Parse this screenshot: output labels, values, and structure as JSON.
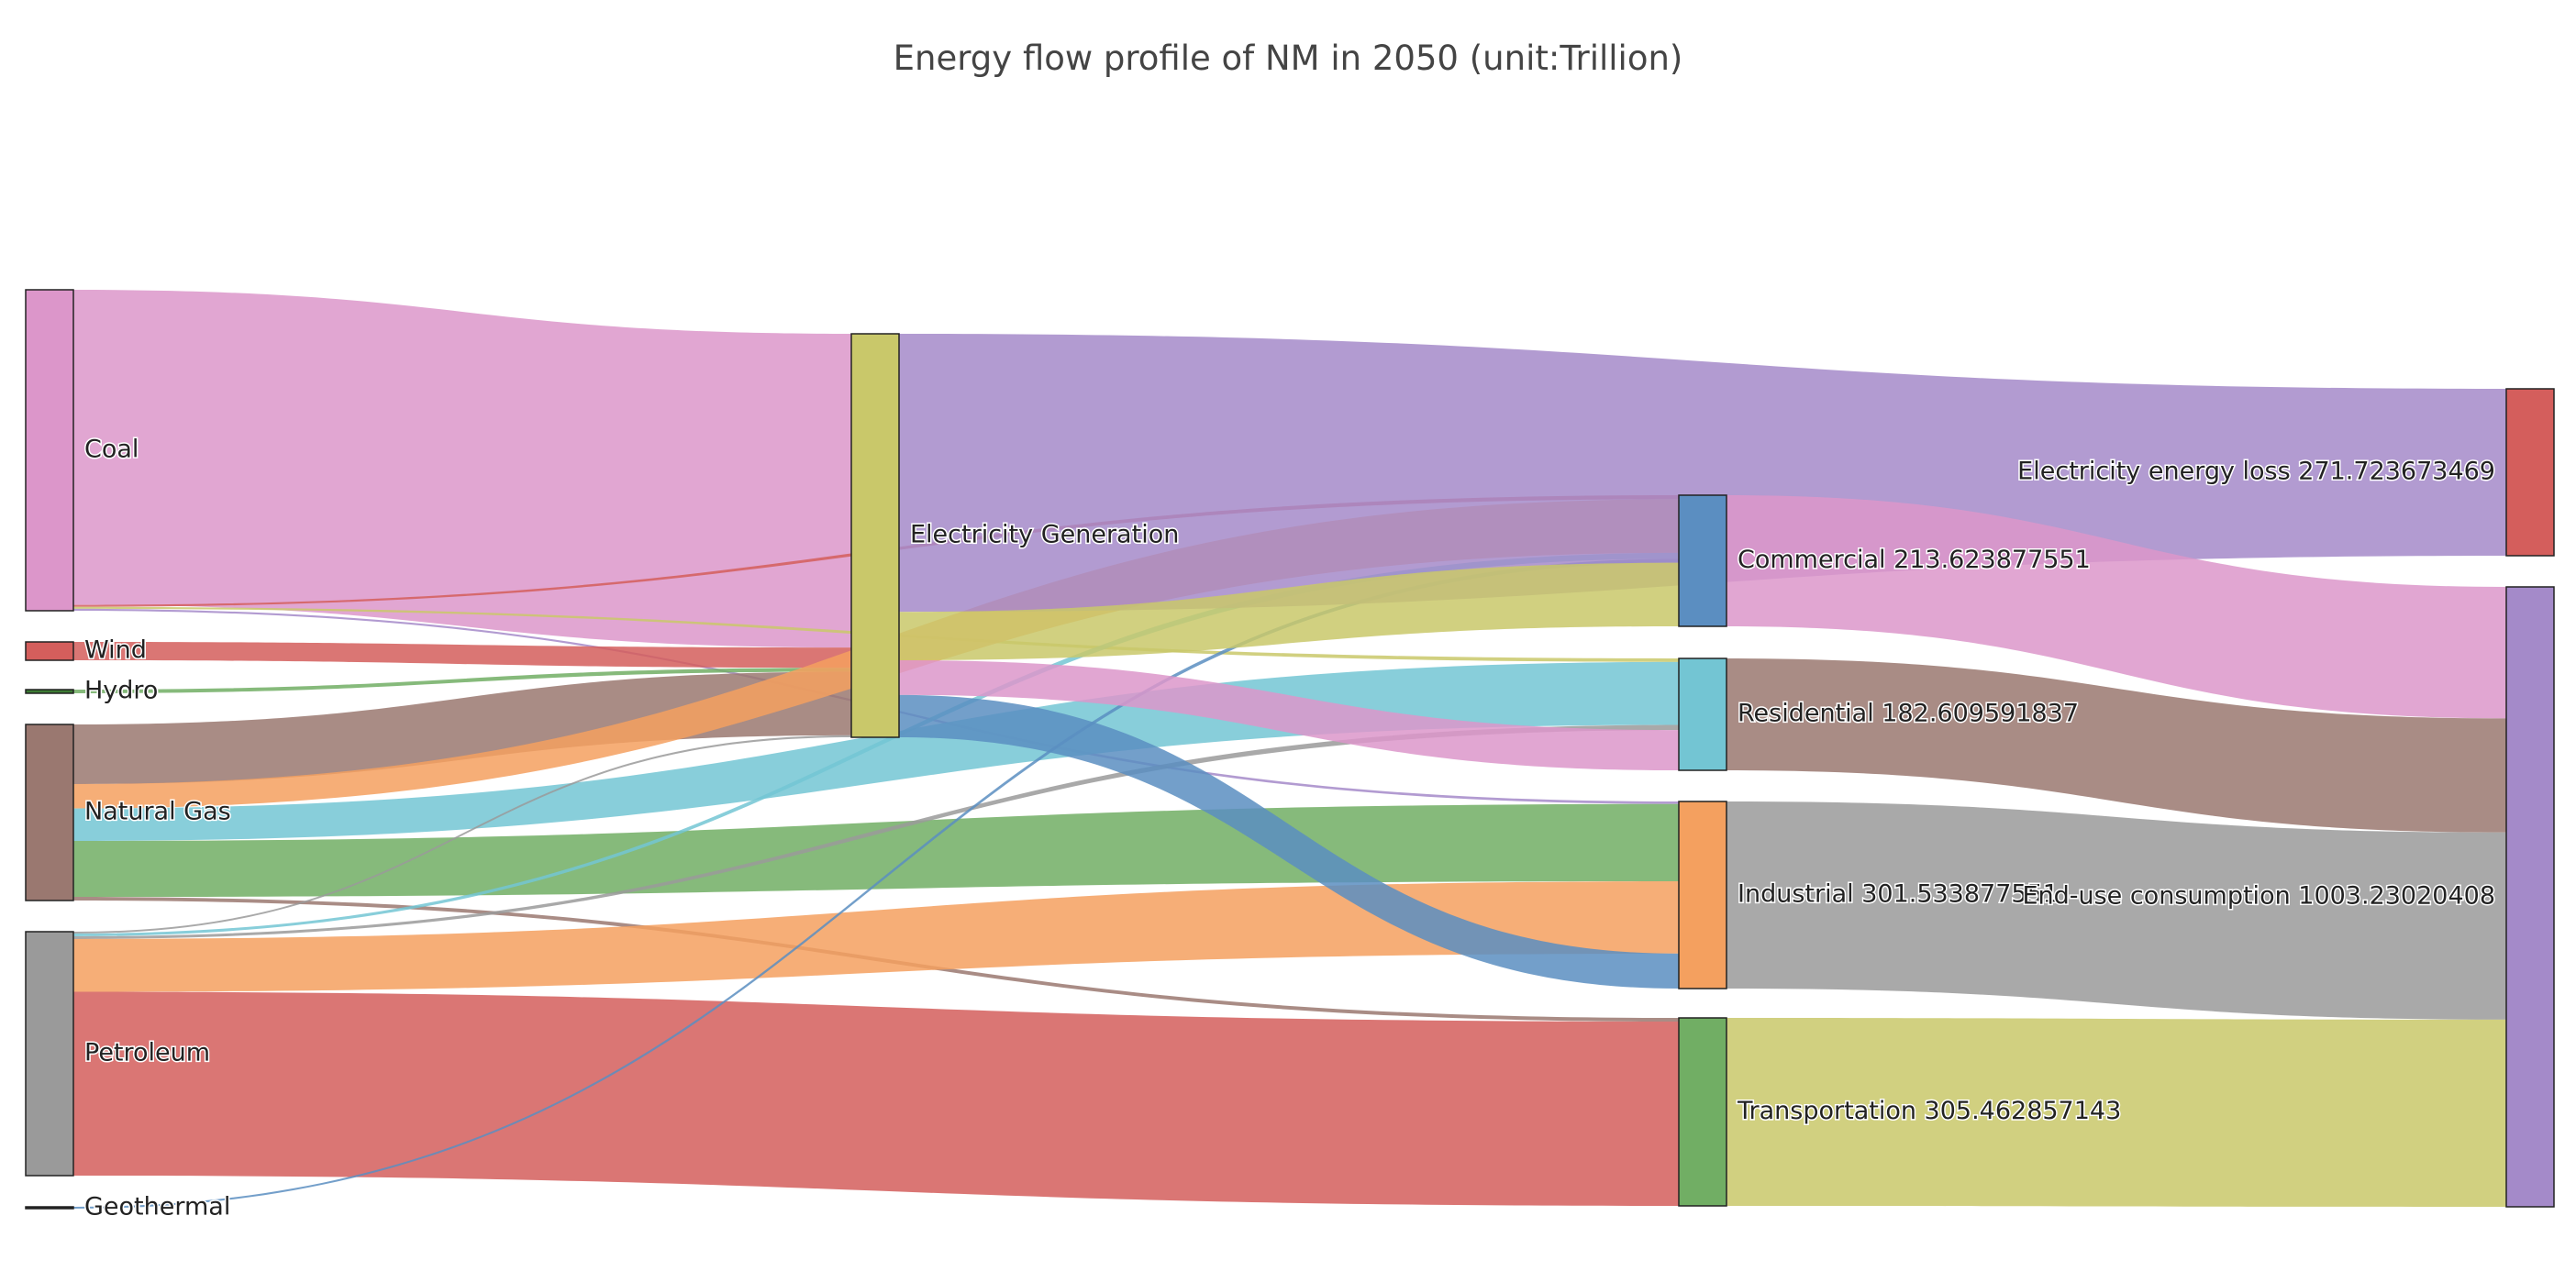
{
  "chart_data": {
    "type": "sankey",
    "title": "Energy flow profile of NM in 2050     (unit:Trillion)",
    "nodes": [
      {
        "id": "coal",
        "label": "Coal",
        "color": "#dc96ca",
        "value": 349.5
      },
      {
        "id": "wind",
        "label": "Wind",
        "color": "#d45e5c",
        "value": 21
      },
      {
        "id": "hydro",
        "label": "Hydro",
        "color": "#3c7a33",
        "value": 4
      },
      {
        "id": "natgas",
        "label": "Natural Gas",
        "color": "#9a7870",
        "value": 195
      },
      {
        "id": "petroleum",
        "label": "Petroleum",
        "color": "#9a9a9a",
        "value": 268
      },
      {
        "id": "geothermal",
        "label": "Geothermal",
        "color": "#222222",
        "value": 2
      },
      {
        "id": "elecgen",
        "label": "Electricity Generation",
        "color": "#c9c86a",
        "value": 441
      },
      {
        "id": "commercial",
        "label": "Commercial 213.623877551",
        "color": "#5b8ec1",
        "value": 213.623877551
      },
      {
        "id": "residential",
        "label": "Residential 182.609591837",
        "color": "#73c5d3",
        "value": 182.609591837
      },
      {
        "id": "industrial",
        "label": "Industrial 301.533877551",
        "color": "#f4a05f",
        "value": 301.533877551
      },
      {
        "id": "transportation",
        "label": "Transportation 305.462857143",
        "color": "#71ae64",
        "value": 305.462857143
      },
      {
        "id": "loss",
        "label": "Electricity energy loss 271.723673469",
        "color": "#d45e5c",
        "value": 271.723673469
      },
      {
        "id": "enduse",
        "label": "End-use consumption 1003.23020408",
        "color": "#a48ac9",
        "value": 1003.23020408
      }
    ],
    "links": [
      {
        "source": "coal",
        "target": "elecgen",
        "value": 325,
        "color": "#dc96ca"
      },
      {
        "source": "coal",
        "target": "commercial",
        "value": 2,
        "color": "#d45e5c"
      },
      {
        "source": "coal",
        "target": "residential",
        "value": 2,
        "color": "#c9c86a"
      },
      {
        "source": "coal",
        "target": "industrial",
        "value": 2,
        "color": "#a48ac9"
      },
      {
        "source": "wind",
        "target": "elecgen",
        "value": 21,
        "color": "#d45e5c"
      },
      {
        "source": "hydro",
        "target": "elecgen",
        "value": 4,
        "color": "#71ae64"
      },
      {
        "source": "natgas",
        "target": "elecgen",
        "value": 66,
        "color": "#9a7870"
      },
      {
        "source": "natgas",
        "target": "commercial",
        "value": 27,
        "color": "#f4a05f"
      },
      {
        "source": "natgas",
        "target": "residential",
        "value": 36,
        "color": "#73c5d3"
      },
      {
        "source": "natgas",
        "target": "industrial",
        "value": 62,
        "color": "#71ae64"
      },
      {
        "source": "natgas",
        "target": "transportation",
        "value": 4,
        "color": "#9a7870"
      },
      {
        "source": "petroleum",
        "target": "elecgen",
        "value": 2,
        "color": "#9a9a9a"
      },
      {
        "source": "petroleum",
        "target": "commercial",
        "value": 3,
        "color": "#73c5d3"
      },
      {
        "source": "petroleum",
        "target": "residential",
        "value": 3,
        "color": "#9a9a9a"
      },
      {
        "source": "petroleum",
        "target": "industrial",
        "value": 58,
        "color": "#f4a05f"
      },
      {
        "source": "petroleum",
        "target": "transportation",
        "value": 202,
        "color": "#d45e5c"
      },
      {
        "source": "geothermal",
        "target": "commercial",
        "value": 2,
        "color": "#5b8ec1"
      },
      {
        "source": "elecgen",
        "target": "loss",
        "value": 184,
        "color": "#a48ac9"
      },
      {
        "source": "elecgen",
        "target": "commercial",
        "value": 32,
        "color": "#c9c86a"
      },
      {
        "source": "elecgen",
        "target": "residential",
        "value": 23,
        "color": "#dc96ca"
      },
      {
        "source": "elecgen",
        "target": "industrial",
        "value": 28,
        "color": "#5b8ec1"
      },
      {
        "source": "commercial",
        "target": "loss",
        "value": 0,
        "color": "#d45e5c"
      },
      {
        "source": "commercial",
        "target": "enduse",
        "value": 144,
        "color": "#dc96ca"
      },
      {
        "source": "residential",
        "target": "enduse",
        "value": 125,
        "color": "#9a7870"
      },
      {
        "source": "industrial",
        "target": "enduse",
        "value": 205,
        "color": "#9a9a9a"
      },
      {
        "source": "transportation",
        "target": "enduse",
        "value": 205,
        "color": "#c9c86a"
      }
    ]
  }
}
